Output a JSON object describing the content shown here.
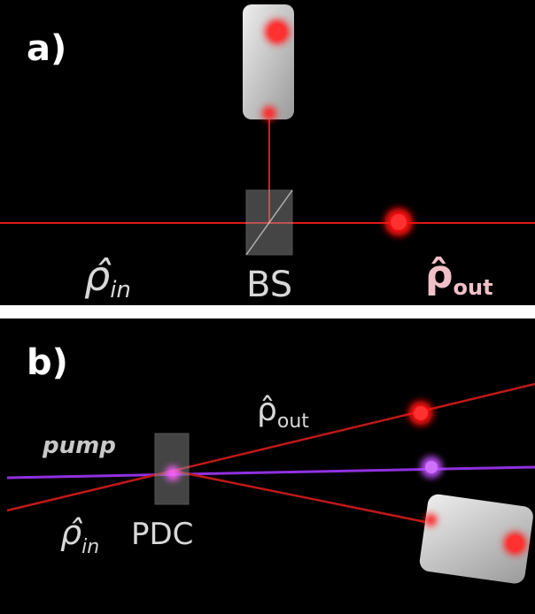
{
  "panels": [
    {
      "label": "a)",
      "component": "BS",
      "input": {
        "symbol": "ρ̂",
        "subscript": "in"
      },
      "output": {
        "symbol": "ρ̂",
        "subscript": "out"
      }
    },
    {
      "label": "b)",
      "beam": "pump",
      "component": "PDC",
      "input": {
        "symbol": "ρ̂",
        "subscript": "in"
      },
      "output": {
        "symbol": "ρ̂",
        "subscript": "out"
      }
    }
  ]
}
